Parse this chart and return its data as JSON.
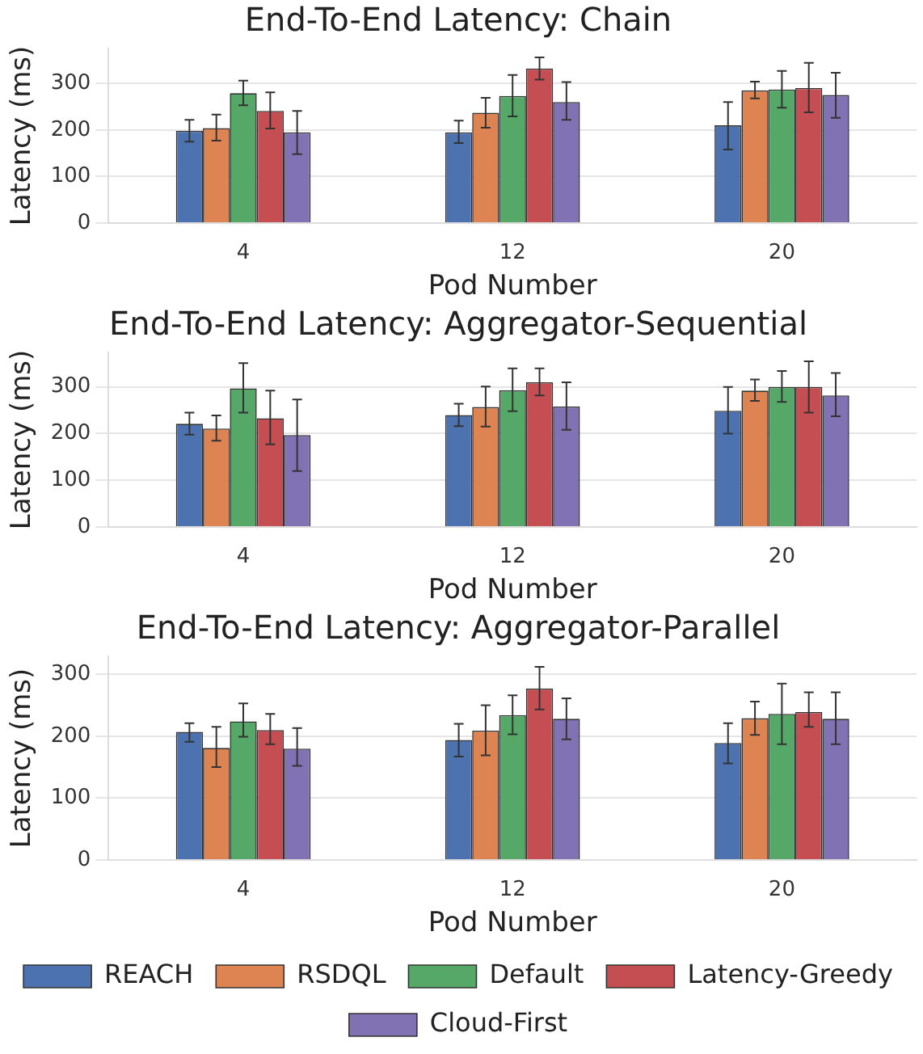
{
  "chart_data": [
    {
      "type": "bar",
      "title": "End-To-End Latency: Chain",
      "xlabel": "Pod Number",
      "ylabel": "Latency (ms)",
      "categories": [
        "4",
        "12",
        "20"
      ],
      "ylim": [
        0,
        375
      ],
      "yticks": [
        0,
        100,
        200,
        300
      ],
      "grid": "y",
      "legend": false,
      "series": [
        {
          "color": "#4c72b0",
          "values": [
            198,
            195,
            210
          ],
          "errors": [
            [
              175,
              222
            ],
            [
              172,
              220
            ],
            [
              158,
              260
            ]
          ]
        },
        {
          "color": "#dd8452",
          "values": [
            204,
            237,
            285
          ],
          "errors": [
            [
              177,
              233
            ],
            [
              205,
              269
            ],
            [
              268,
              304
            ]
          ]
        },
        {
          "color": "#55a868",
          "values": [
            279,
            273,
            287
          ],
          "errors": [
            [
              253,
              306
            ],
            [
              229,
              318
            ],
            [
              248,
              327
            ]
          ]
        },
        {
          "color": "#c44e52",
          "values": [
            241,
            332,
            290
          ],
          "errors": [
            [
              203,
              281
            ],
            [
              308,
              356
            ],
            [
              238,
              344
            ]
          ]
        },
        {
          "color": "#8172b3",
          "values": [
            195,
            260,
            275
          ],
          "errors": [
            [
              148,
              241
            ],
            [
              222,
              303
            ],
            [
              226,
              323
            ]
          ]
        }
      ]
    },
    {
      "type": "bar",
      "title": "End-To-End Latency: Aggregator-Sequential",
      "xlabel": "Pod Number",
      "ylabel": "Latency (ms)",
      "categories": [
        "4",
        "12",
        "20"
      ],
      "ylim": [
        0,
        374
      ],
      "yticks": [
        0,
        100,
        200,
        300
      ],
      "grid": "y",
      "legend": false,
      "series": [
        {
          "color": "#4c72b0",
          "values": [
            221,
            240,
            249
          ],
          "errors": [
            [
              198,
              245
            ],
            [
              216,
              264
            ],
            [
              200,
              300
            ]
          ]
        },
        {
          "color": "#dd8452",
          "values": [
            211,
            257,
            292
          ],
          "errors": [
            [
              185,
              239
            ],
            [
              215,
              301
            ],
            [
              270,
              316
            ]
          ]
        },
        {
          "color": "#55a868",
          "values": [
            297,
            293,
            300
          ],
          "errors": [
            [
              245,
              351
            ],
            [
              248,
              340
            ],
            [
              268,
              334
            ]
          ]
        },
        {
          "color": "#c44e52",
          "values": [
            233,
            310,
            300
          ],
          "errors": [
            [
              177,
              292
            ],
            [
              282,
              340
            ],
            [
              245,
              355
            ]
          ]
        },
        {
          "color": "#8172b3",
          "values": [
            197,
            258,
            282
          ],
          "errors": [
            [
              120,
              273
            ],
            [
              208,
              310
            ],
            [
              237,
              330
            ]
          ]
        }
      ]
    },
    {
      "type": "bar",
      "title": "End-To-End Latency: Aggregator-Parallel",
      "xlabel": "Pod Number",
      "ylabel": "Latency (ms)",
      "categories": [
        "4",
        "12",
        "20"
      ],
      "ylim": [
        0,
        329
      ],
      "yticks": [
        0,
        100,
        200,
        300
      ],
      "grid": "y",
      "legend": "bottom",
      "series": [
        {
          "name": "REACH",
          "color": "#4c72b0",
          "values": [
            207,
            194,
            189
          ],
          "errors": [
            [
              191,
              221
            ],
            [
              167,
              220
            ],
            [
              156,
              221
            ]
          ]
        },
        {
          "name": "RSDQL",
          "color": "#dd8452",
          "values": [
            181,
            209,
            229
          ],
          "errors": [
            [
              150,
              215
            ],
            [
              169,
              250
            ],
            [
              202,
              256
            ]
          ]
        },
        {
          "name": "Default",
          "color": "#55a868",
          "values": [
            224,
            234,
            236
          ],
          "errors": [
            [
              199,
              253
            ],
            [
              203,
              266
            ],
            [
              187,
              285
            ]
          ]
        },
        {
          "name": "Latency-Greedy",
          "color": "#c44e52",
          "values": [
            210,
            277,
            239
          ],
          "errors": [
            [
              187,
              236
            ],
            [
              243,
              312
            ],
            [
              215,
              271
            ]
          ]
        },
        {
          "name": "Cloud-First",
          "color": "#8172b3",
          "values": [
            180,
            228,
            228
          ],
          "errors": [
            [
              152,
              213
            ],
            [
              195,
              261
            ],
            [
              187,
              271
            ]
          ]
        }
      ]
    }
  ]
}
